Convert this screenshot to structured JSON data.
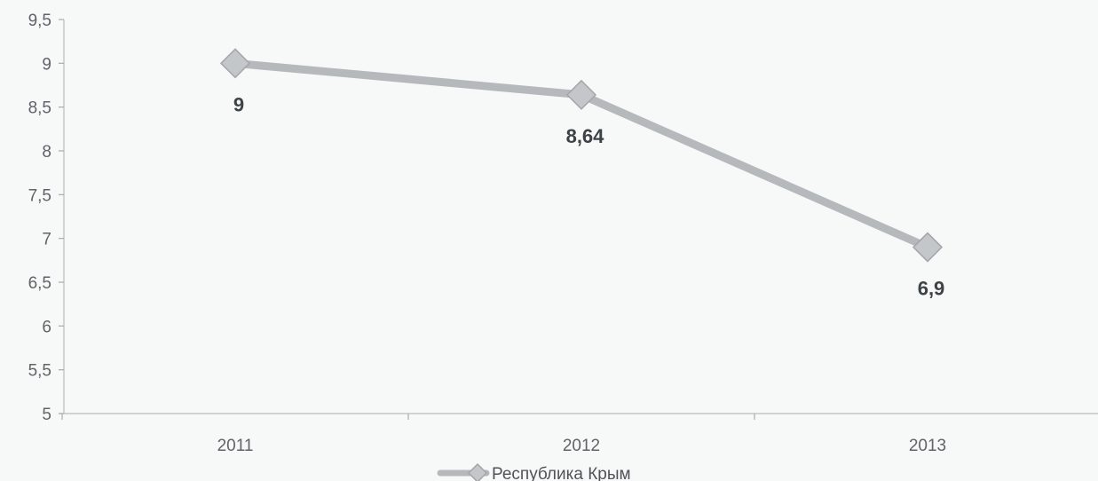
{
  "chart_data": {
    "type": "line",
    "categories": [
      "2011",
      "2012",
      "2013"
    ],
    "series": [
      {
        "name": "Республика Крым",
        "values": [
          9,
          8.64,
          6.9
        ],
        "labels": [
          "9",
          "8,64",
          "6,9"
        ]
      }
    ],
    "yticks": [
      "5",
      "5,5",
      "6",
      "6,5",
      "7",
      "7,5",
      "8",
      "8,5",
      "9",
      "9,5"
    ],
    "ylim": [
      5,
      9.5
    ],
    "grid": false,
    "legend_position": "bottom",
    "marker": "diamond",
    "colors": {
      "series": "#b6b9bc",
      "marker": "#c4c7ca",
      "axis": "#b9bcbf",
      "text": "#5f6468"
    }
  }
}
